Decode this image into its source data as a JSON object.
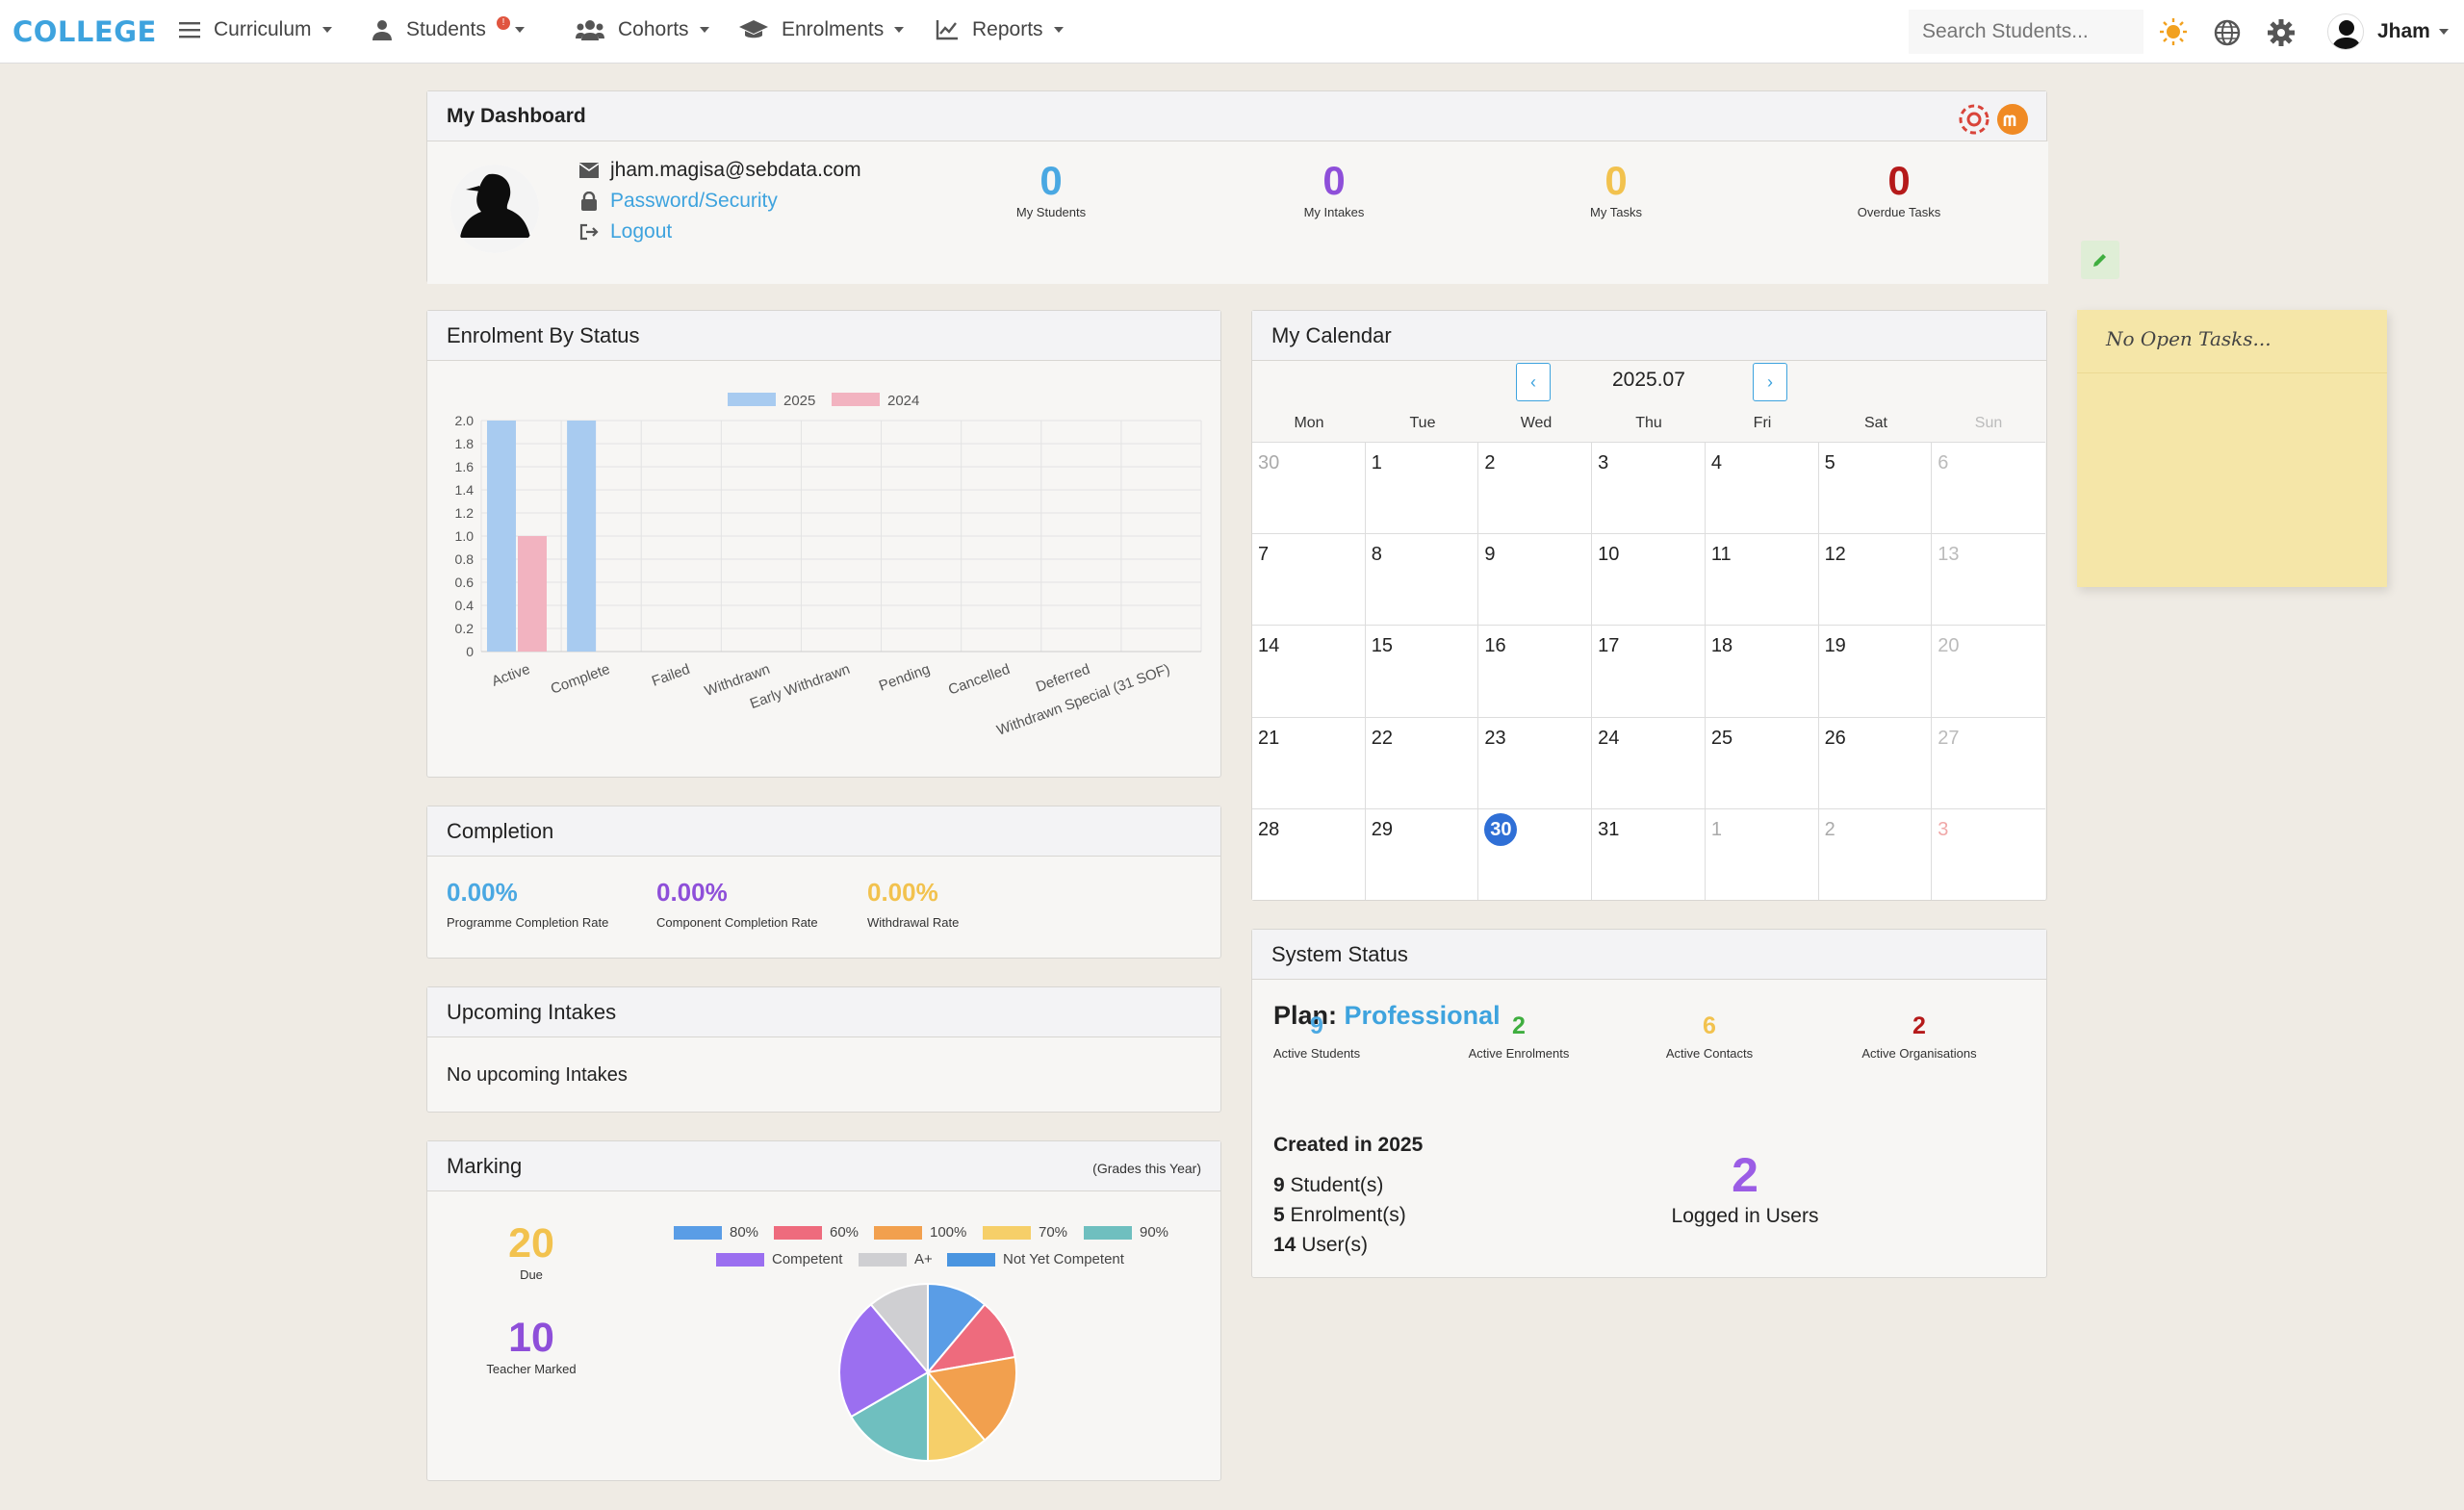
{
  "brand": "COLLEGE",
  "nav": {
    "curriculum": "Curriculum",
    "students": "Students",
    "students_badge": "!",
    "cohorts": "Cohorts",
    "enrolments": "Enrolments",
    "reports": "Reports"
  },
  "search": {
    "placeholder": "Search Students..."
  },
  "user": {
    "name": "Jham"
  },
  "dashboard": {
    "title": "My Dashboard",
    "email": "jham.magisa@sebdata.com",
    "password_link": "Password/Security",
    "logout_link": "Logout",
    "stats": [
      {
        "value": "0",
        "label": "My Students",
        "color": "#4aa8e2"
      },
      {
        "value": "0",
        "label": "My Intakes",
        "color": "#8e4fd9"
      },
      {
        "value": "0",
        "label": "My Tasks",
        "color": "#f2c24e"
      },
      {
        "value": "0",
        "label": "Overdue Tasks",
        "color": "#b51a1a"
      }
    ]
  },
  "enrolment_status": {
    "title": "Enrolment By Status"
  },
  "chart_data": {
    "type": "bar",
    "categories": [
      "Active",
      "Complete",
      "Failed",
      "Withdrawn",
      "Early Withdrawn",
      "Pending",
      "Cancelled",
      "Deferred",
      "Withdrawn Special (31 SOF)"
    ],
    "series": [
      {
        "name": "2025",
        "values": [
          2,
          2,
          0,
          0,
          0,
          0,
          0,
          0,
          0
        ],
        "color": "#a8cbf0"
      },
      {
        "name": "2024",
        "values": [
          1,
          0,
          0,
          0,
          0,
          0,
          0,
          0,
          0
        ],
        "color": "#f2b3c0"
      }
    ],
    "ylim": [
      0,
      2.0
    ],
    "yticks": [
      "2.0",
      "1.8",
      "1.6",
      "1.4",
      "1.2",
      "1.0",
      "0.8",
      "0.6",
      "0.4",
      "0.2",
      "0"
    ],
    "legend": "top"
  },
  "completion": {
    "title": "Completion",
    "items": [
      {
        "value": "0.00%",
        "label": "Programme Completion Rate",
        "color": "#4aa8e2"
      },
      {
        "value": "0.00%",
        "label": "Component Completion Rate",
        "color": "#8e4fd9"
      },
      {
        "value": "0.00%",
        "label": "Withdrawal Rate",
        "color": "#f2c24e"
      }
    ]
  },
  "upcoming": {
    "title": "Upcoming Intakes",
    "text": "No upcoming Intakes"
  },
  "marking": {
    "title": "Marking",
    "subtitle": "(Grades this Year)",
    "due_value": "20",
    "due_label": "Due",
    "marked_value": "10",
    "marked_label": "Teacher Marked",
    "legend": [
      {
        "label": "80%",
        "color": "#5a9de6"
      },
      {
        "label": "60%",
        "color": "#ee6b7d"
      },
      {
        "label": "100%",
        "color": "#f2a04e"
      },
      {
        "label": "70%",
        "color": "#f6cf69"
      },
      {
        "label": "90%",
        "color": "#6fbfbf"
      },
      {
        "label": "Competent",
        "color": "#9b6ff0"
      },
      {
        "label": "A+",
        "color": "#cfcfd2"
      },
      {
        "label": "Not Yet Competent",
        "color": "#4a95e0"
      }
    ],
    "pie": [
      {
        "label": "80%",
        "value": 2,
        "color": "#5a9de6"
      },
      {
        "label": "60%",
        "value": 2,
        "color": "#ee6b7d"
      },
      {
        "label": "100%",
        "value": 3,
        "color": "#f2a04e"
      },
      {
        "label": "70%",
        "value": 2,
        "color": "#f6cf69"
      },
      {
        "label": "90%",
        "value": 3,
        "color": "#6fbfbf"
      },
      {
        "label": "Competent",
        "value": 4,
        "color": "#9b6ff0"
      },
      {
        "label": "A+",
        "value": 2,
        "color": "#cfcfd2"
      }
    ]
  },
  "calendar": {
    "title": "My Calendar",
    "month": "2025.07",
    "prev": "‹",
    "next": "›",
    "days": [
      "Mon",
      "Tue",
      "Wed",
      "Thu",
      "Fri",
      "Sat",
      "Sun"
    ],
    "cells": [
      {
        "d": "30",
        "o": true
      },
      {
        "d": "1"
      },
      {
        "d": "2"
      },
      {
        "d": "3"
      },
      {
        "d": "4"
      },
      {
        "d": "5"
      },
      {
        "d": "6"
      },
      {
        "d": "7"
      },
      {
        "d": "8"
      },
      {
        "d": "9"
      },
      {
        "d": "10"
      },
      {
        "d": "11"
      },
      {
        "d": "12"
      },
      {
        "d": "13"
      },
      {
        "d": "14"
      },
      {
        "d": "15"
      },
      {
        "d": "16"
      },
      {
        "d": "17"
      },
      {
        "d": "18"
      },
      {
        "d": "19"
      },
      {
        "d": "20"
      },
      {
        "d": "21"
      },
      {
        "d": "22"
      },
      {
        "d": "23"
      },
      {
        "d": "24"
      },
      {
        "d": "25"
      },
      {
        "d": "26"
      },
      {
        "d": "27"
      },
      {
        "d": "28"
      },
      {
        "d": "29"
      },
      {
        "d": "30",
        "t": true
      },
      {
        "d": "31"
      },
      {
        "d": "1",
        "o": true
      },
      {
        "d": "2",
        "o": true
      },
      {
        "d": "3",
        "o": true
      }
    ]
  },
  "system": {
    "title": "System Status",
    "plan_label": "Plan:",
    "plan_value": "Professional",
    "stats": [
      {
        "value": "9",
        "label": "Active Students",
        "color": "#4aa8e2"
      },
      {
        "value": "2",
        "label": "Active Enrolments",
        "color": "#3fae3f"
      },
      {
        "value": "6",
        "label": "Active Contacts",
        "color": "#f2c24e"
      },
      {
        "value": "2",
        "label": "Active Organisations",
        "color": "#b51a1a"
      }
    ],
    "created_title": "Created in 2025",
    "created": [
      {
        "n": "9",
        "t": "Student(s)"
      },
      {
        "n": "5",
        "t": "Enrolment(s)"
      },
      {
        "n": "14",
        "t": "User(s)"
      }
    ],
    "logged_value": "2",
    "logged_label": "Logged in Users"
  },
  "sticky": {
    "text": "No Open Tasks..."
  }
}
